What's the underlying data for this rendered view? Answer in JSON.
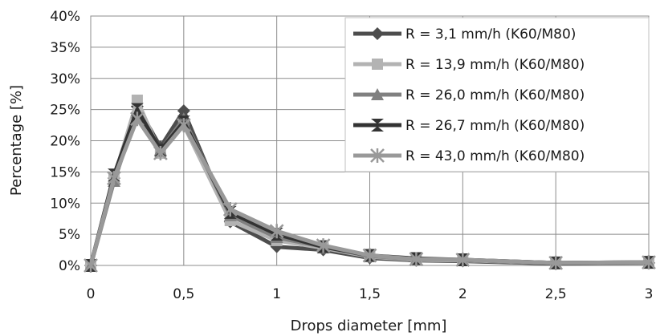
{
  "chart_data": {
    "type": "line",
    "title": "",
    "xlabel": "Drops diameter [mm]",
    "ylabel": "Percentage [%]",
    "xlim": [
      0,
      3
    ],
    "ylim": [
      0,
      0.4
    ],
    "grid": true,
    "legend_position": "top-right",
    "x_ticks": [
      0,
      0.5,
      1,
      1.5,
      2,
      2.5,
      3
    ],
    "x_tick_labels": [
      "0",
      "0,5",
      "1",
      "1,5",
      "2",
      "2,5",
      "3"
    ],
    "y_ticks": [
      0,
      0.05,
      0.1,
      0.15,
      0.2,
      0.25,
      0.3,
      0.35,
      0.4
    ],
    "y_tick_labels": [
      "0%",
      "5%",
      "10%",
      "15%",
      "20%",
      "25%",
      "30%",
      "35%",
      "40%"
    ],
    "x": [
      0,
      0.125,
      0.25,
      0.375,
      0.5,
      0.75,
      1,
      1.25,
      1.5,
      1.75,
      2,
      2.5,
      3
    ],
    "series": [
      {
        "name": "R = 3,1 mm/h (K60/M80)",
        "color": "#4d4d4d",
        "marker": "diamond",
        "values": [
          0,
          0.14,
          0.255,
          0.19,
          0.248,
          0.07,
          0.03,
          0.025,
          0.012,
          0.008,
          0.007,
          0.003,
          0.004
        ]
      },
      {
        "name": "R = 13,9 mm/h (K60/M80)",
        "color": "#b3b3b3",
        "marker": "square",
        "values": [
          0,
          0.14,
          0.265,
          0.18,
          0.225,
          0.072,
          0.04,
          0.028,
          0.014,
          0.009,
          0.008,
          0.004,
          0.004
        ]
      },
      {
        "name": "R = 26,0 mm/h (K60/M80)",
        "color": "#808080",
        "marker": "triangle",
        "values": [
          0,
          0.135,
          0.245,
          0.185,
          0.235,
          0.08,
          0.045,
          0.03,
          0.015,
          0.01,
          0.009,
          0.004,
          0.005
        ]
      },
      {
        "name": "R = 26,7 mm/h (K60/M80)",
        "color": "#333333",
        "marker": "hourglass",
        "values": [
          0,
          0.145,
          0.25,
          0.185,
          0.23,
          0.085,
          0.05,
          0.03,
          0.016,
          0.011,
          0.009,
          0.004,
          0.005
        ]
      },
      {
        "name": "R = 43,0 mm/h (K60/M80)",
        "color": "#999999",
        "marker": "asterisk",
        "values": [
          0,
          0.14,
          0.235,
          0.18,
          0.225,
          0.09,
          0.055,
          0.032,
          0.016,
          0.01,
          0.009,
          0.004,
          0.005
        ]
      }
    ]
  }
}
